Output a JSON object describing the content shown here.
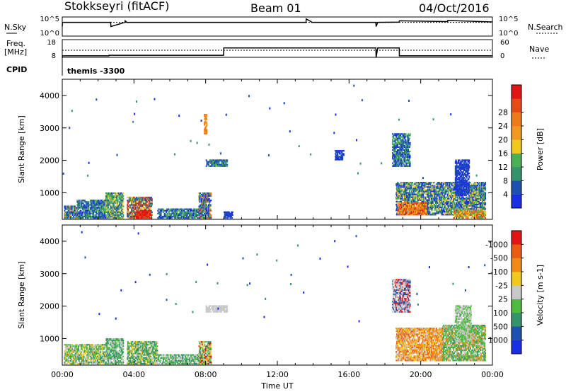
{
  "header": {
    "title": "Stokkseyri (fitACF)",
    "beam": "Beam 01",
    "date": "04/Oct/2016"
  },
  "chart_data": [
    {
      "type": "line",
      "panel": "noise",
      "left_label": "N.Sky",
      "right_label": "N.Search",
      "left_ticks": [
        "10^5",
        "10^0"
      ],
      "right_ticks": [
        "10^5",
        "10^0"
      ],
      "x_hours": [
        0,
        0.01,
        2.7,
        2.71,
        3.5,
        3.51,
        3.6,
        13.6,
        13.61,
        13.9,
        13.91,
        17.5,
        17.51,
        17.6,
        18.8,
        18.81,
        21.5,
        21.51,
        24
      ],
      "sky": [
        0.5,
        0.72,
        0.72,
        0.5,
        0.72,
        0.8,
        0.72,
        0.72,
        0.9,
        0.75,
        0.72,
        0.72,
        0.5,
        0.72,
        0.73,
        0.8,
        0.76,
        0.82,
        0.74
      ],
      "search": [
        0.72,
        0.72,
        0.72,
        0.72,
        0.72,
        0.72,
        0.72,
        0.72,
        0.72,
        0.72,
        0.72,
        0.72,
        0.72,
        0.72,
        0.72,
        0.72,
        0.72,
        0.72,
        0.72
      ]
    },
    {
      "type": "line",
      "panel": "frequency",
      "left_label": "Freq.",
      "left_unit": "[MHz]",
      "right_label": "Nave",
      "left_ticks": [
        "18",
        "8"
      ],
      "right_ticks": [
        "60",
        "0"
      ],
      "ylim_freq": [
        8,
        18
      ],
      "ylim_nave": [
        0,
        60
      ],
      "freq_x": [
        0,
        24
      ],
      "freq": [
        12,
        12
      ],
      "nave_x": [
        0,
        0.01,
        2.6,
        2.61,
        9,
        9.01,
        17.5,
        17.51,
        17.6,
        18.8,
        18.81,
        24
      ],
      "nave": [
        0,
        5,
        5,
        7,
        7,
        32,
        32,
        0,
        32,
        32,
        5,
        5
      ]
    },
    {
      "type": "text",
      "panel": "cpid",
      "label": "CPID",
      "value": "themis -3300"
    },
    {
      "type": "heatmap",
      "panel": "power",
      "ylabel": "Slant Range [km]",
      "yticks": [
        "1000",
        "2000",
        "3000",
        "4000"
      ],
      "ylim": [
        180,
        4500
      ],
      "xlim": [
        0,
        24
      ],
      "colorbar_label": "Power [dB]",
      "colorbar_ticks": [
        "4",
        "8",
        "12",
        "16",
        "20",
        "24",
        "28"
      ],
      "colors": [
        "#1a2ee6",
        "#1f4fb0",
        "#33936a",
        "#4bb055",
        "#f2c81e",
        "#f09820",
        "#ee7a19",
        "#e84a15",
        "#e21414"
      ],
      "regions": [
        {
          "h": [
            0.1,
            0.8
          ],
          "r": [
            200,
            600
          ],
          "levels": [
            0,
            1,
            2,
            3,
            6
          ]
        },
        {
          "h": [
            0.8,
            2.4
          ],
          "r": [
            200,
            750
          ],
          "levels": [
            0,
            1,
            2,
            3
          ]
        },
        {
          "h": [
            2.4,
            3.4
          ],
          "r": [
            200,
            1000
          ],
          "levels": [
            1,
            2,
            3,
            4
          ]
        },
        {
          "h": [
            3.6,
            5.0
          ],
          "r": [
            200,
            850
          ],
          "levels": [
            1,
            2,
            4,
            7,
            8
          ]
        },
        {
          "h": [
            4.1,
            4.9
          ],
          "r": [
            200,
            450
          ],
          "levels": [
            7,
            8,
            8
          ]
        },
        {
          "h": [
            5.3,
            7.8
          ],
          "r": [
            200,
            500
          ],
          "levels": [
            0,
            1,
            2,
            3
          ]
        },
        {
          "h": [
            7.6,
            8.3
          ],
          "r": [
            200,
            1000
          ],
          "levels": [
            0,
            1,
            3,
            6
          ]
        },
        {
          "h": [
            7.9,
            8.05
          ],
          "r": [
            2800,
            3400
          ],
          "levels": [
            5,
            6
          ]
        },
        {
          "h": [
            8.0,
            9.2
          ],
          "r": [
            1800,
            2000
          ],
          "levels": [
            0,
            1,
            2,
            3
          ]
        },
        {
          "h": [
            9.0,
            9.5
          ],
          "r": [
            200,
            400
          ],
          "levels": [
            0,
            1
          ]
        },
        {
          "h": [
            15.2,
            15.7
          ],
          "r": [
            2000,
            2300
          ],
          "levels": [
            0,
            1
          ]
        },
        {
          "h": [
            18.4,
            19.4
          ],
          "r": [
            1800,
            2800
          ],
          "levels": [
            0,
            1,
            2,
            3
          ]
        },
        {
          "h": [
            18.6,
            21.5
          ],
          "r": [
            300,
            1300
          ],
          "levels": [
            0,
            1,
            2,
            3,
            4
          ]
        },
        {
          "h": [
            18.7,
            20.3
          ],
          "r": [
            300,
            700
          ],
          "levels": [
            4,
            5,
            6,
            7,
            8
          ]
        },
        {
          "h": [
            21.5,
            23.6
          ],
          "r": [
            300,
            1300
          ],
          "levels": [
            0,
            1,
            2,
            3,
            4
          ]
        },
        {
          "h": [
            21.8,
            23.6
          ],
          "r": [
            200,
            450
          ],
          "levels": [
            3,
            4,
            6,
            7
          ]
        },
        {
          "h": [
            21.9,
            22.7
          ],
          "r": [
            900,
            2000
          ],
          "levels": [
            0,
            1
          ]
        }
      ]
    },
    {
      "type": "heatmap",
      "panel": "velocity",
      "ylabel": "Slant Range [km]",
      "yticks": [
        "1000",
        "2000",
        "3000",
        "4000"
      ],
      "ylim": [
        180,
        4500
      ],
      "xlabel": "Time UT",
      "xticks": [
        "00:00",
        "04:00",
        "08:00",
        "12:00",
        "16:00",
        "20:00",
        "00:00"
      ],
      "xlim": [
        0,
        24
      ],
      "colorbar_label": "Velocity [m s-1]",
      "colorbar_ticks": [
        "1000",
        "500",
        "100",
        "25",
        "-25",
        "-100",
        "-500",
        "-1000"
      ],
      "colors": [
        "#1a2ee6",
        "#1f4fb0",
        "#33936a",
        "#4cbb3e",
        "#c8c8c8",
        "#f2c81e",
        "#f08a16",
        "#ea5a12",
        "#e21414"
      ],
      "regions": [
        {
          "h": [
            0.1,
            2.4
          ],
          "r": [
            200,
            800
          ],
          "levels": [
            2,
            3,
            4,
            5
          ]
        },
        {
          "h": [
            2.4,
            3.4
          ],
          "r": [
            200,
            1000
          ],
          "levels": [
            2,
            3,
            4
          ]
        },
        {
          "h": [
            3.6,
            5.3
          ],
          "r": [
            200,
            900
          ],
          "levels": [
            2,
            2,
            3,
            4,
            5
          ]
        },
        {
          "h": [
            5.3,
            7.8
          ],
          "r": [
            200,
            500
          ],
          "levels": [
            2,
            3,
            4
          ]
        },
        {
          "h": [
            7.6,
            8.3
          ],
          "r": [
            200,
            900
          ],
          "levels": [
            2,
            3,
            4,
            5,
            8
          ]
        },
        {
          "h": [
            8.0,
            9.2
          ],
          "r": [
            1800,
            2000
          ],
          "levels": [
            4,
            4
          ]
        },
        {
          "h": [
            18.4,
            19.4
          ],
          "r": [
            1800,
            2800
          ],
          "levels": [
            4,
            4,
            1,
            8
          ]
        },
        {
          "h": [
            18.6,
            21.2
          ],
          "r": [
            300,
            1300
          ],
          "levels": [
            5,
            6,
            6,
            7,
            4
          ]
        },
        {
          "h": [
            21.2,
            23.6
          ],
          "r": [
            300,
            1400
          ],
          "levels": [
            3,
            3,
            4,
            2,
            6
          ]
        },
        {
          "h": [
            21.9,
            22.8
          ],
          "r": [
            900,
            2000
          ],
          "levels": [
            4,
            3
          ]
        }
      ]
    }
  ]
}
